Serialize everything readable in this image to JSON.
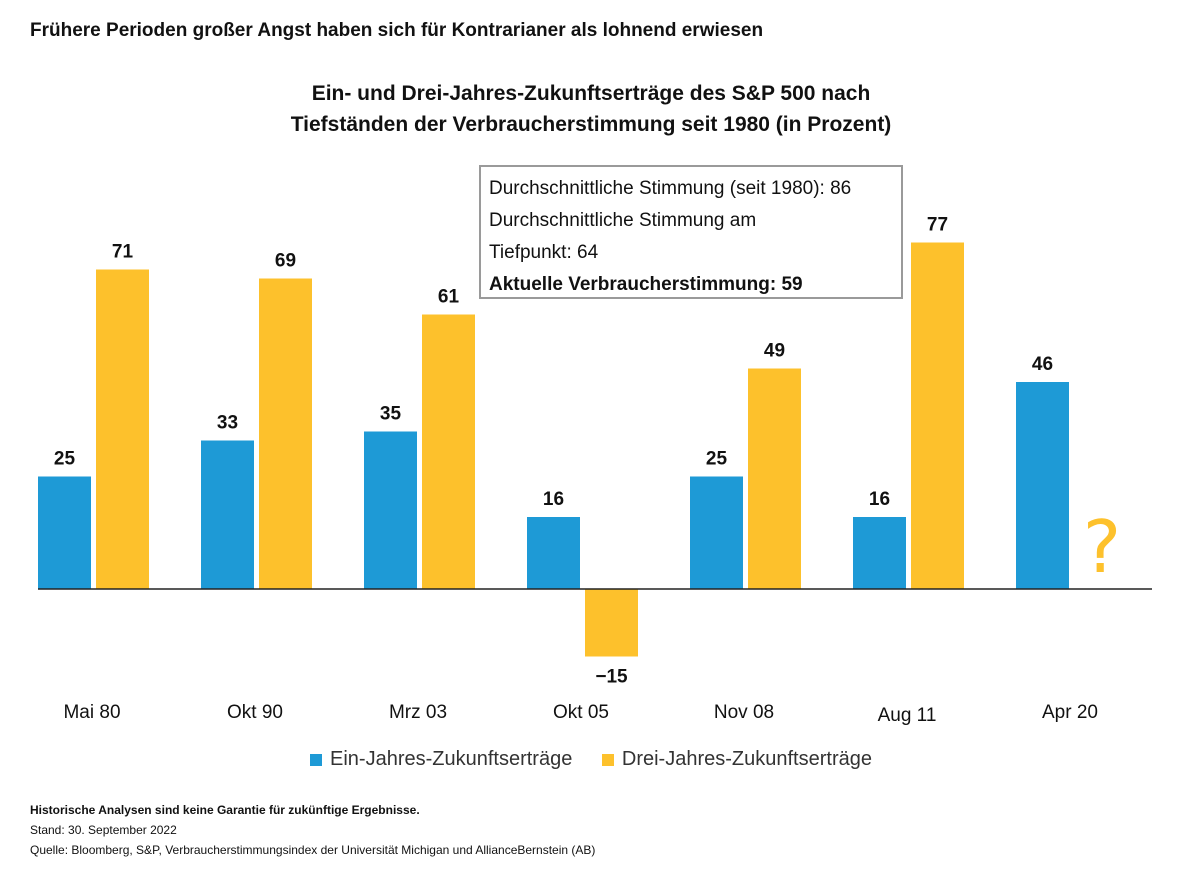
{
  "headline": "Frühere Perioden großer Angst haben sich für Kontrarianer als lohnend erwiesen",
  "chart_data": {
    "type": "bar",
    "title_line1": "Ein- und Drei-Jahres-Zukunftserträge des S&P 500 nach",
    "title_line2": "Tiefständen der Verbraucherstimmung seit 1980 (in Prozent)",
    "categories": [
      "Mai 80",
      "Okt 90",
      "Mrz 03",
      "Okt 05",
      "Nov 08",
      "Aug 11",
      "Apr 20"
    ],
    "series": [
      {
        "name": "Ein-Jahres-Zukunftserträge",
        "color": "#1e9ad6",
        "values": [
          25,
          33,
          35,
          16,
          25,
          16,
          46
        ]
      },
      {
        "name": "Drei-Jahres-Zukunftserträge",
        "color": "#fdc12c",
        "values": [
          71,
          69,
          61,
          -15,
          49,
          77,
          null
        ]
      }
    ],
    "value_labels": [
      [
        "25",
        "33",
        "35",
        "16",
        "25",
        "16",
        "46"
      ],
      [
        "71",
        "69",
        "61",
        "−15",
        "49",
        "77",
        null
      ]
    ],
    "missing_marker": "?",
    "ylim": [
      -20,
      85
    ],
    "grid": false,
    "legend_position": "bottom-center"
  },
  "infobox": {
    "line1": "Durchschnittliche Stimmung (seit 1980): 86",
    "line2": "Durchschnittliche Stimmung am",
    "line3": "Tiefpunkt: 64",
    "line4": "Aktuelle Verbraucherstimmung: 59"
  },
  "footer": {
    "disclaimer": "Historische Analysen sind keine Garantie für zukünftige Ergebnisse.",
    "date": "Stand: 30. September 2022",
    "source": "Quelle: Bloomberg, S&P, Verbraucherstimmungsindex der Universität Michigan und AllianceBernstein (AB)"
  }
}
